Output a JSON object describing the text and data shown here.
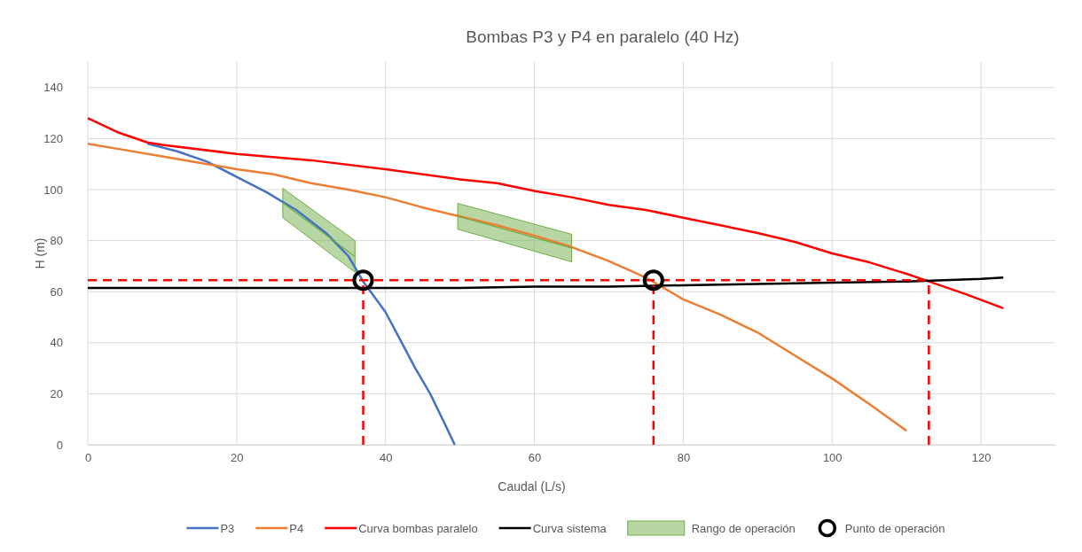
{
  "chart_data": {
    "type": "line",
    "title": "Bombas P3 y P4 en paralelo (40 Hz)",
    "xlabel": "Caudal (L/s)",
    "ylabel": "H (m)",
    "xlim": [
      0,
      130
    ],
    "ylim": [
      0,
      150
    ],
    "xticks": [
      0,
      20,
      40,
      60,
      80,
      100,
      120
    ],
    "yticks": [
      0,
      20,
      40,
      60,
      80,
      100,
      120,
      140
    ],
    "grid": true,
    "legend": "bottom",
    "marker": "none",
    "line_style": "solid",
    "series": [
      {
        "name": "P3",
        "color": "#4472c4",
        "x": [
          8,
          12,
          16,
          20,
          24,
          28,
          32,
          35,
          37,
          40,
          42,
          44,
          46,
          48,
          49.3
        ],
        "values": [
          118,
          115,
          111,
          105,
          99,
          92,
          83,
          74,
          64,
          52,
          41,
          30,
          20,
          8,
          0
        ]
      },
      {
        "name": "P4",
        "color": "#ed7d31",
        "x": [
          0,
          5,
          10,
          15,
          20,
          25,
          30,
          35,
          40,
          45,
          50,
          55,
          60,
          65,
          70,
          75,
          80,
          85,
          90,
          95,
          100,
          105,
          110
        ],
        "values": [
          118,
          115.5,
          113,
          110.5,
          108,
          106,
          102.5,
          100,
          97,
          93,
          89.5,
          86,
          82,
          77.5,
          72,
          65.5,
          57,
          51,
          44,
          35,
          26,
          16,
          5.5
        ]
      },
      {
        "name": "Curva bombas paralelo",
        "color": "#ff0000",
        "x": [
          0,
          4,
          8,
          10,
          20,
          30,
          40,
          50,
          55,
          60,
          65,
          70,
          75,
          80,
          85,
          90,
          95,
          100,
          105,
          110,
          113,
          118,
          123
        ],
        "values": [
          128,
          122.5,
          118.5,
          117.5,
          114,
          111.5,
          108,
          104,
          102.5,
          99.5,
          97,
          94,
          92,
          89,
          86,
          83,
          79.5,
          75,
          71.5,
          67,
          64,
          59,
          53.5
        ]
      },
      {
        "name": "Curva sistema",
        "color": "#000000",
        "x": [
          0,
          50,
          60,
          70,
          80,
          90,
          100,
          110,
          115,
          120,
          123
        ],
        "values": [
          61.5,
          61.5,
          62,
          62,
          62.5,
          63,
          63.5,
          64,
          64.5,
          65,
          65.5
        ]
      },
      {
        "type": "line",
        "line_style": "dashed",
        "color": "#ff0000",
        "x": [
          0,
          113
        ],
        "values": [
          64.5,
          64.5
        ]
      },
      {
        "type": "line",
        "line_style": "dashed",
        "color": "#ff0000",
        "x": [
          37,
          37
        ],
        "values": [
          0,
          64.5
        ]
      },
      {
        "type": "line",
        "line_style": "dashed",
        "color": "#ff0000",
        "x": [
          76,
          76
        ],
        "values": [
          0,
          64.5
        ]
      },
      {
        "type": "line",
        "line_style": "dashed",
        "color": "#ff0000",
        "x": [
          113,
          113
        ],
        "values": [
          0,
          64.5
        ]
      },
      {
        "name": "Rango de operación",
        "color": "#70ad47",
        "x": [
          26.2,
          35.9
        ],
        "values": [
          94.8,
          73.8
        ],
        "lower": [
          89,
          67.6
        ],
        "upper": [
          100.5,
          80
        ]
      },
      {
        "color": "#70ad47",
        "x": [
          49.7,
          65
        ],
        "values": [
          89.6,
          77.1
        ],
        "lower": [
          84.5,
          71.7
        ],
        "upper": [
          94.6,
          82.5
        ]
      },
      {
        "name": "Punto de operación",
        "type": "scatter",
        "marker": "circle",
        "color": "#000000",
        "x": [
          37,
          76
        ],
        "values": [
          64.5,
          64.5
        ]
      }
    ]
  }
}
